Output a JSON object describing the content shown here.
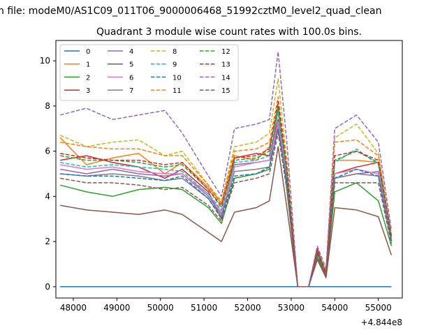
{
  "figure": {
    "suptitle": "n file: modeM0/AS1C09_011T06_9000006468_51992cztM0_level2_quad_clean",
    "title": "Quadrant 3 module wise count rates with 100.0s bins.",
    "x_offset_label": "+4.844e8"
  },
  "chart_data": {
    "type": "line",
    "title": "Quadrant 3 module wise count rates with 100.0s bins.",
    "xlim": [
      47600,
      55550
    ],
    "ylim": [
      -0.5,
      10.9
    ],
    "x_offset": 484400000,
    "xticks": [
      48000,
      49000,
      50000,
      51000,
      52000,
      53000,
      54000,
      55000
    ],
    "xtick_labels": [
      "48000",
      "49000",
      "50000",
      "51000",
      "52000",
      "53000",
      "54000",
      "55000"
    ],
    "yticks": [
      0,
      2,
      4,
      6,
      8,
      10
    ],
    "ytick_labels": [
      "0",
      "2",
      "4",
      "6",
      "8",
      "10"
    ],
    "legend_position": "upper-left",
    "x": [
      47700,
      48300,
      48900,
      49500,
      50100,
      50500,
      51100,
      51400,
      51700,
      52200,
      52500,
      52700,
      52900,
      53150,
      53400,
      53600,
      53800,
      54000,
      54500,
      55000,
      55300
    ],
    "series": [
      {
        "name": "0",
        "color": "#1f77b4",
        "dash": "solid",
        "values": [
          0,
          0,
          0,
          0,
          0,
          0,
          0,
          0,
          0,
          0,
          0,
          0,
          0,
          0,
          0,
          0,
          0,
          0,
          0,
          0,
          0
        ]
      },
      {
        "name": "1",
        "color": "#ff7f0e",
        "dash": "solid",
        "values": [
          6.6,
          5.4,
          5.7,
          5.9,
          5.0,
          5.5,
          4.4,
          3.7,
          5.8,
          5.6,
          6.2,
          7.8,
          5.1,
          0,
          0,
          1.5,
          0.6,
          5.6,
          5.6,
          5.5,
          2.2
        ]
      },
      {
        "name": "2",
        "color": "#2ca02c",
        "dash": "solid",
        "values": [
          4.5,
          4.2,
          4.0,
          4.3,
          4.4,
          4.3,
          3.5,
          2.8,
          4.8,
          5.0,
          5.2,
          8.0,
          4.3,
          0,
          0,
          1.3,
          0.5,
          4.2,
          4.6,
          3.8,
          1.8
        ]
      },
      {
        "name": "3",
        "color": "#d62728",
        "dash": "solid",
        "values": [
          5.6,
          5.8,
          5.5,
          5.3,
          4.8,
          5.2,
          4.2,
          3.0,
          5.7,
          5.9,
          5.8,
          7.4,
          5.0,
          0,
          0,
          1.7,
          0.6,
          5.0,
          5.3,
          5.5,
          2.2
        ]
      },
      {
        "name": "4",
        "color": "#9467bd",
        "dash": "solid",
        "values": [
          5.2,
          5.0,
          5.2,
          5.0,
          4.9,
          5.0,
          4.0,
          3.2,
          5.4,
          5.5,
          5.6,
          7.2,
          4.8,
          0,
          0,
          1.6,
          0.6,
          4.8,
          5.0,
          5.1,
          2.1
        ]
      },
      {
        "name": "5",
        "color": "#8c564b",
        "dash": "solid",
        "values": [
          3.6,
          3.4,
          3.3,
          3.2,
          3.4,
          3.2,
          2.4,
          2.0,
          3.3,
          3.5,
          3.8,
          6.2,
          3.5,
          0,
          0,
          1.2,
          0.4,
          3.5,
          3.4,
          3.1,
          1.4
        ]
      },
      {
        "name": "6",
        "color": "#e377c2",
        "dash": "solid",
        "values": [
          5.4,
          5.2,
          5.3,
          5.1,
          5.0,
          5.0,
          4.1,
          3.3,
          5.3,
          5.5,
          5.6,
          7.3,
          4.9,
          0,
          0,
          1.6,
          0.6,
          5.0,
          5.2,
          5.0,
          2.1
        ]
      },
      {
        "name": "7",
        "color": "#7f7f7f",
        "dash": "solid",
        "values": [
          5.0,
          4.9,
          5.0,
          4.9,
          4.7,
          4.8,
          3.9,
          3.1,
          5.1,
          5.2,
          5.3,
          7.0,
          4.7,
          0,
          0,
          1.5,
          0.5,
          4.8,
          5.0,
          4.9,
          2.0
        ]
      },
      {
        "name": "8",
        "color": "#bcbd22",
        "dash": "dashed",
        "values": [
          6.7,
          6.2,
          6.4,
          6.5,
          5.8,
          6.0,
          4.5,
          3.8,
          6.2,
          6.4,
          6.8,
          9.2,
          5.6,
          0,
          0,
          1.6,
          0.7,
          6.6,
          7.2,
          5.9,
          2.3
        ]
      },
      {
        "name": "9",
        "color": "#17becf",
        "dash": "dashed",
        "values": [
          5.5,
          5.3,
          5.4,
          5.3,
          5.2,
          5.1,
          4.1,
          3.4,
          5.5,
          5.6,
          5.8,
          7.7,
          5.0,
          0,
          0,
          1.6,
          0.6,
          5.5,
          6.1,
          5.4,
          2.2
        ]
      },
      {
        "name": "10",
        "color": "#1f77b4",
        "dash": "dashed",
        "values": [
          5.0,
          4.9,
          4.9,
          4.8,
          4.7,
          4.9,
          3.9,
          3.0,
          4.9,
          5.0,
          5.3,
          7.0,
          4.6,
          0,
          0,
          1.5,
          0.5,
          4.8,
          5.2,
          4.9,
          2.0
        ]
      },
      {
        "name": "11",
        "color": "#ff7f0e",
        "dash": "dashed",
        "values": [
          6.4,
          6.2,
          6.1,
          6.1,
          5.8,
          5.8,
          4.5,
          3.7,
          6.0,
          6.1,
          6.4,
          8.4,
          5.4,
          0,
          0,
          1.6,
          0.7,
          6.4,
          6.5,
          5.8,
          2.3
        ]
      },
      {
        "name": "12",
        "color": "#2ca02c",
        "dash": "dashed",
        "values": [
          5.8,
          5.6,
          5.6,
          5.5,
          5.3,
          5.4,
          4.3,
          3.5,
          5.6,
          5.7,
          6.0,
          8.0,
          5.2,
          0,
          0,
          1.6,
          0.6,
          5.6,
          6.0,
          5.5,
          2.2
        ]
      },
      {
        "name": "13",
        "color": "#d62728",
        "dash": "dashed",
        "values": [
          5.9,
          5.7,
          5.6,
          5.6,
          5.4,
          5.5,
          4.3,
          3.6,
          5.7,
          5.8,
          6.1,
          8.2,
          5.2,
          0,
          0,
          1.6,
          0.6,
          5.8,
          6.0,
          5.6,
          2.2
        ]
      },
      {
        "name": "14",
        "color": "#9467bd",
        "dash": "dashed",
        "values": [
          7.6,
          7.9,
          7.4,
          7.6,
          7.8,
          6.8,
          4.9,
          4.0,
          7.0,
          7.2,
          7.4,
          10.4,
          6.4,
          0,
          0,
          1.8,
          0.8,
          7.0,
          7.6,
          6.4,
          2.5
        ]
      },
      {
        "name": "15",
        "color": "#8c564b",
        "dash": "dashed",
        "values": [
          4.8,
          4.6,
          4.6,
          4.5,
          4.3,
          4.4,
          3.6,
          2.9,
          4.6,
          4.8,
          5.0,
          6.8,
          4.3,
          0,
          0,
          1.4,
          0.5,
          4.6,
          4.6,
          4.6,
          1.9
        ]
      }
    ]
  }
}
